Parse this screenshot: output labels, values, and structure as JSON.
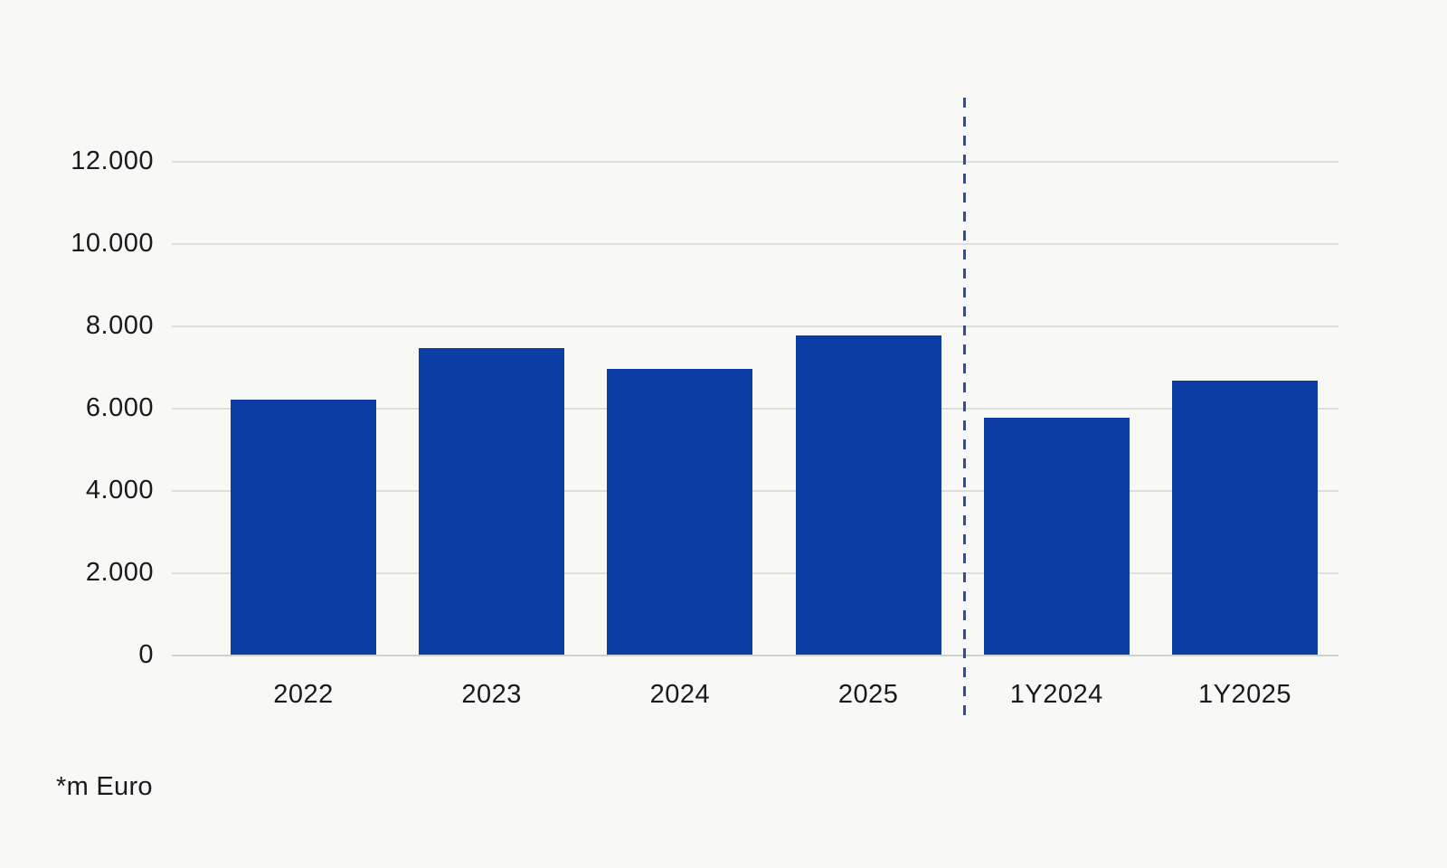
{
  "chart_data": {
    "type": "bar",
    "categories": [
      "2022",
      "2023",
      "2024",
      "2025",
      "1Y2024",
      "1Y2025"
    ],
    "values": [
      6200,
      7450,
      6950,
      7750,
      5750,
      6650
    ],
    "title": "",
    "xlabel": "",
    "ylabel": "*m Euro",
    "ylim": [
      0,
      12000
    ],
    "yticks": [
      0,
      2000,
      4000,
      6000,
      8000,
      10000,
      12000
    ],
    "ytick_labels": [
      "0",
      "2.000",
      "4.000",
      "6.000",
      "8.000",
      "10.000",
      "12.000"
    ],
    "grid": true,
    "legend": false,
    "separator": {
      "after_category": "2025",
      "style": "dashed-vertical-line"
    }
  },
  "footnote": "*m Euro",
  "colors": {
    "bar": "#0C3DA4",
    "separator_line": "#2B4E9E",
    "gridline": "#DEDEDC",
    "axis_line": "#CFCFCD",
    "text": "#1A1A1A",
    "background": "#F8F8F6"
  }
}
